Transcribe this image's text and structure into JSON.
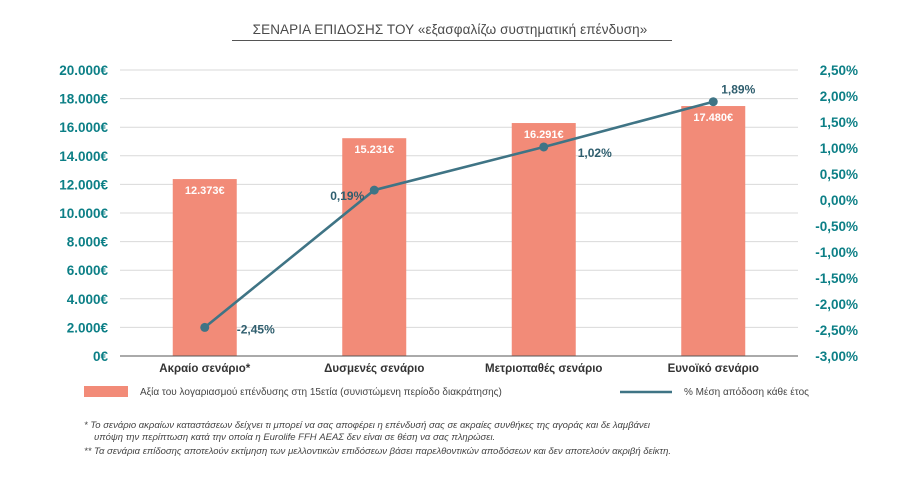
{
  "chart_data": {
    "type": "bar+line",
    "title": "ΣΕΝΑΡΙΑ ΕΠΙΔΟΣΗΣ ΤΟΥ «εξασφαλίζω συστηματική επένδυση»",
    "categories": [
      "Ακραίο σενάριο*",
      "Δυσμενές σενάριο",
      "Μετριοπαθές σενάριο",
      "Ευνοϊκό σενάριο"
    ],
    "bar_series": {
      "name": "Αξία του λογαριασμού επένδυσης στη 15ετία (συνιστώμενη περίοδο διακράτησης)",
      "values": [
        12373,
        15231,
        16291,
        17480
      ],
      "labels": [
        "12.373€",
        "15.231€",
        "16.291€",
        "17.480€"
      ]
    },
    "line_series": {
      "name": "% Μέση απόδοση κάθε έτος",
      "values": [
        -2.45,
        0.19,
        1.02,
        1.89
      ],
      "labels": [
        "-2,45%",
        "0,19%",
        "1,02%",
        "1,89%"
      ]
    },
    "left_axis": {
      "ylim": [
        0,
        20000
      ],
      "ticks": [
        0,
        2000,
        4000,
        6000,
        8000,
        10000,
        12000,
        14000,
        16000,
        18000,
        20000
      ],
      "tick_labels": [
        "0€",
        "2.000€",
        "4.000€",
        "6.000€",
        "8.000€",
        "10.000€",
        "12.000€",
        "14.000€",
        "16.000€",
        "18.000€",
        "20.000€"
      ]
    },
    "right_axis": {
      "ylim": [
        -3.0,
        2.5
      ],
      "ticks": [
        -3.0,
        -2.5,
        -2.0,
        -1.5,
        -1.0,
        -0.5,
        0.0,
        0.5,
        1.0,
        1.5,
        2.0,
        2.5
      ],
      "tick_labels": [
        "-3,00%",
        "-2,50%",
        "-2,00%",
        "-1,50%",
        "-1,00%",
        "-0,50%",
        "0,00%",
        "0,50%",
        "1,00%",
        "1,50%",
        "2,00%",
        "2,50%"
      ]
    },
    "grid": true,
    "legend_position": "bottom",
    "colors": {
      "bar": "#f28b78",
      "line": "#3f7485",
      "axis_text": "#0c7f86",
      "grid": "#d9d9d9"
    }
  },
  "footnotes": [
    "*  Το σενάριο ακραίων καταστάσεων δείχνει τι μπορεί να σας αποφέρει η επένδυσή σας σε ακραίες συνθήκες της αγοράς και δε λαμβάνει",
    "υπόψη την περίπτωση κατά την οποία η Eurolife FFH ΑΕΑΣ δεν είναι σε θέση να σας πληρώσει.",
    "** Τα σενάρια επίδοσης αποτελούν εκτίμηση των μελλοντικών επιδόσεων βάσει παρελθοντικών αποδόσεων και δεν αποτελούν ακριβή δείκτη."
  ]
}
